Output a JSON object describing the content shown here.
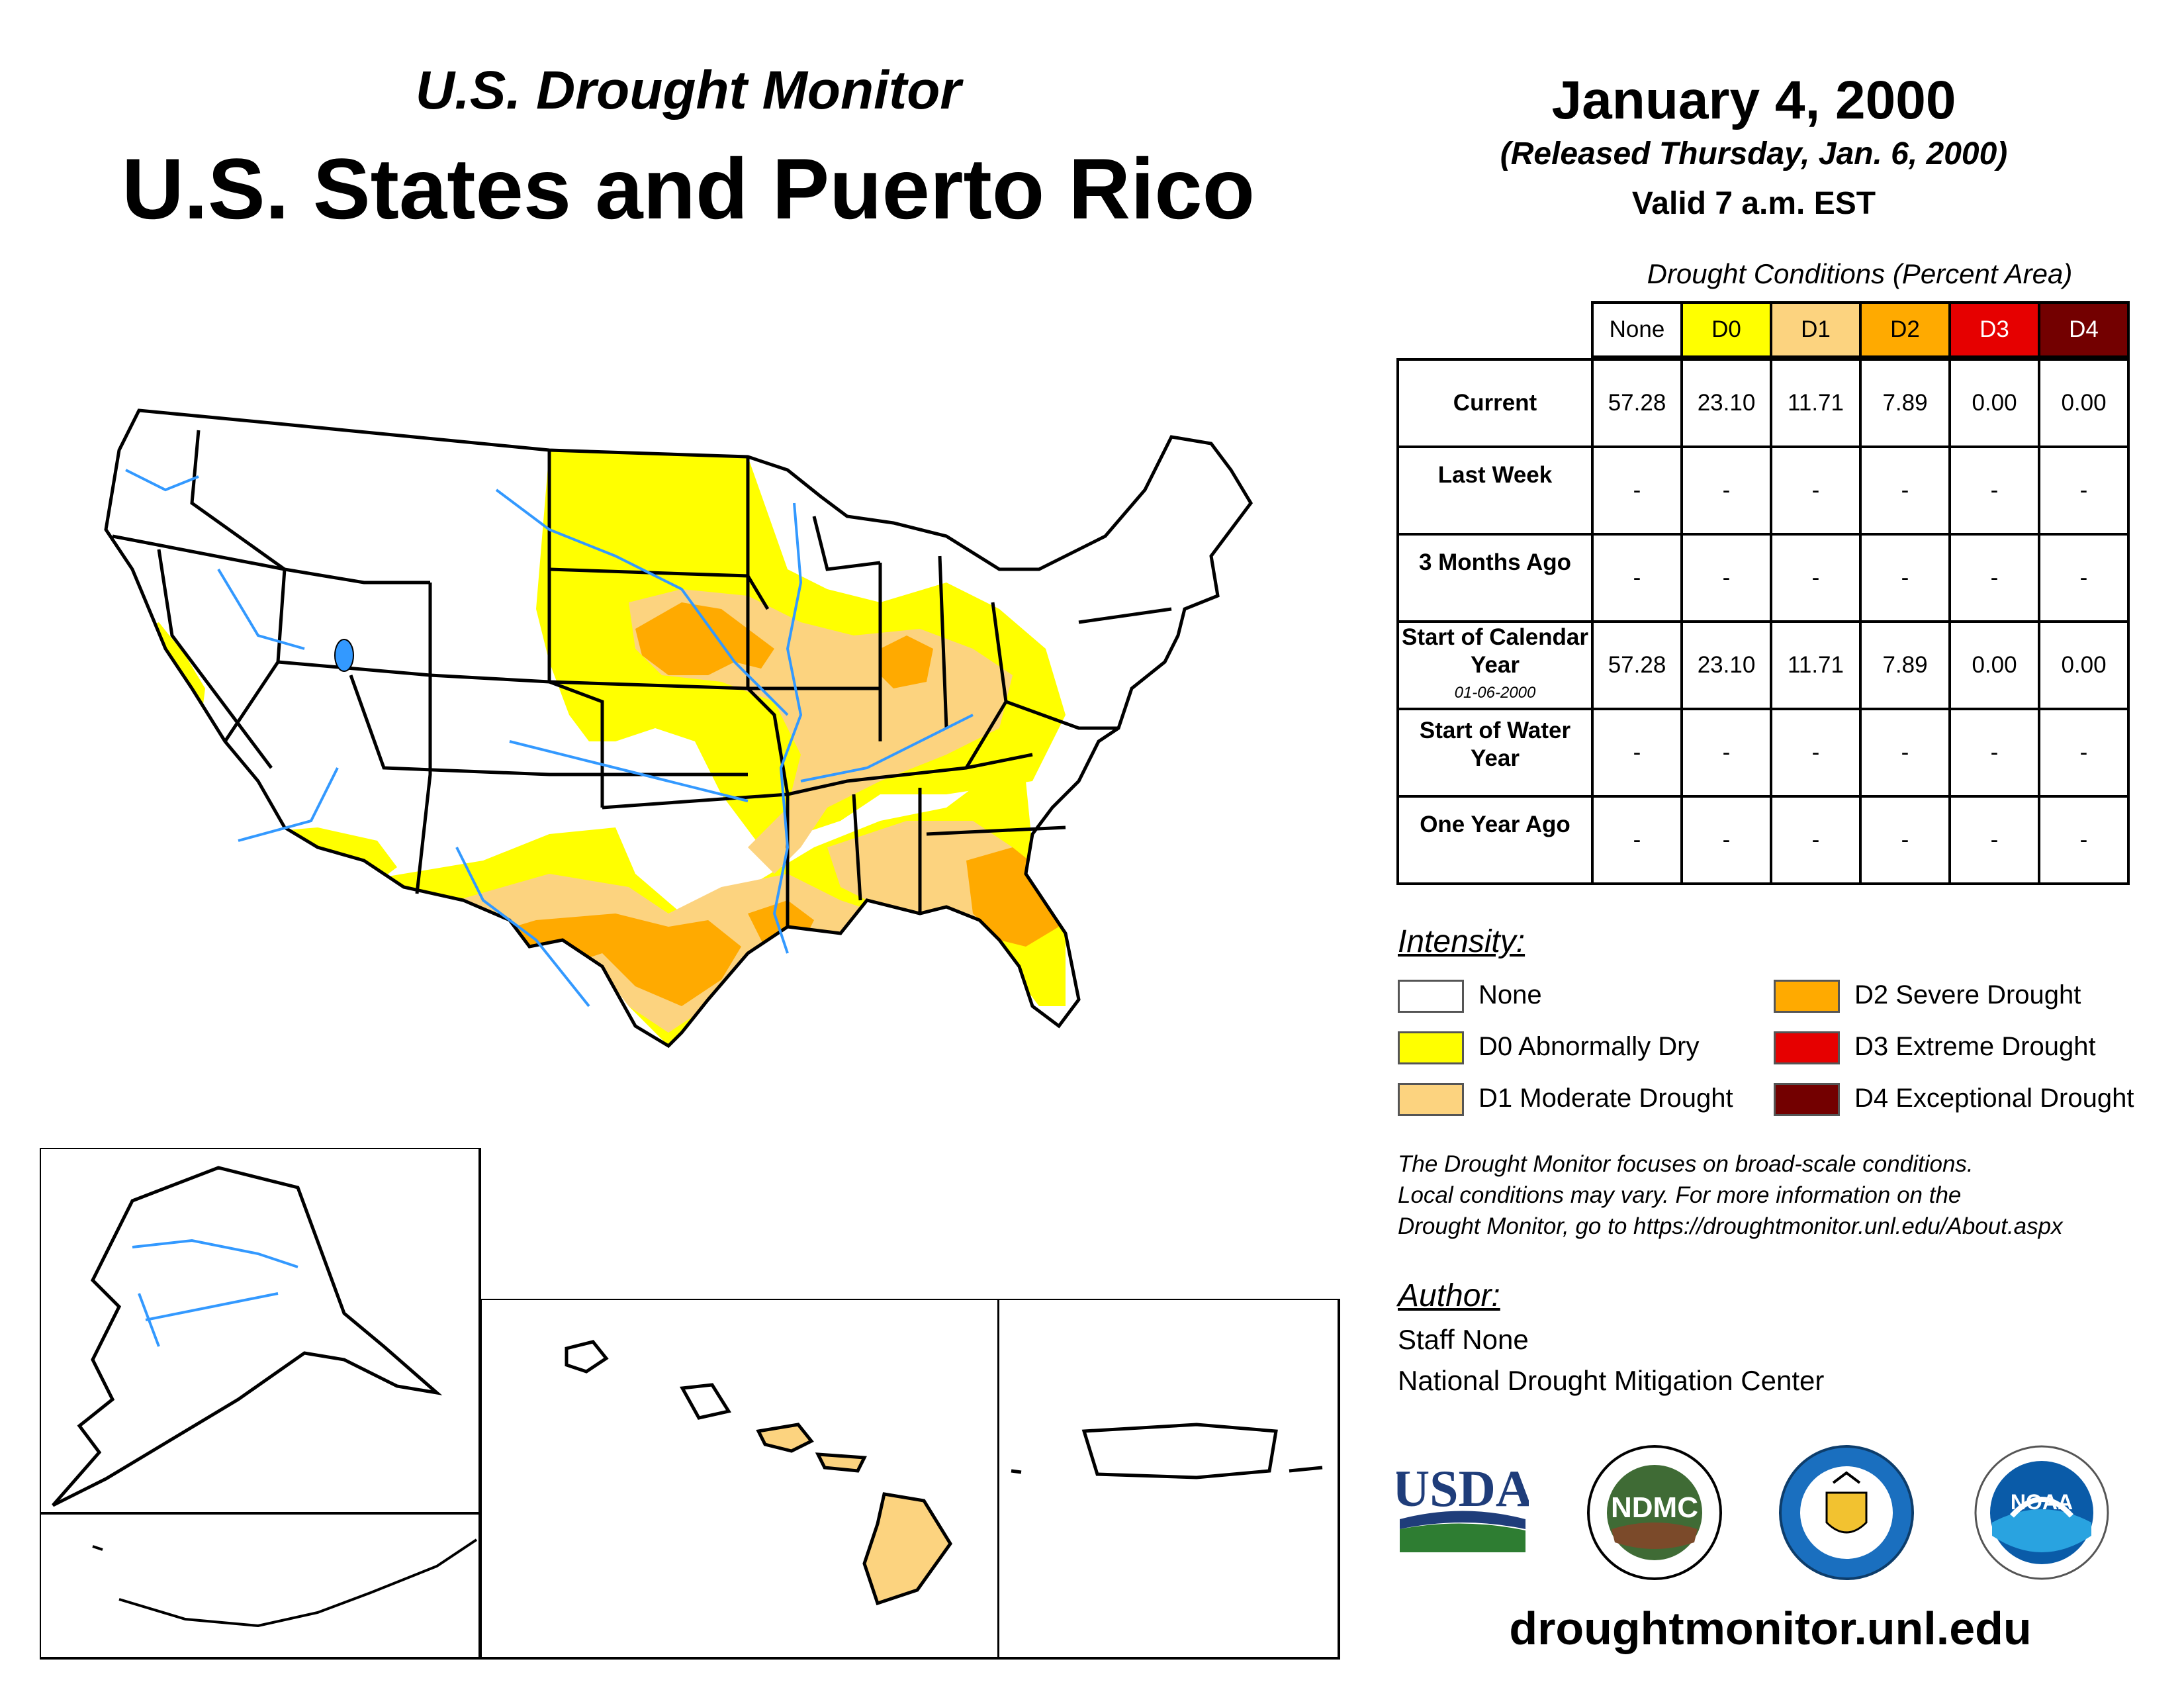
{
  "header": {
    "subtitle": "U.S. Drought Monitor",
    "title": "U.S. States and Puerto Rico",
    "date": "January 4, 2000",
    "released": "(Released Thursday, Jan. 6, 2000)",
    "valid": "Valid 7 a.m. EST"
  },
  "table": {
    "caption": "Drought Conditions (Percent Area)",
    "columns": [
      "None",
      "D0",
      "D1",
      "D2",
      "D3",
      "D4"
    ],
    "column_colors": [
      "#ffffff",
      "#ffff00",
      "#fcd37f",
      "#ffaa00",
      "#e60000",
      "#730000"
    ],
    "rows": [
      {
        "label": "Current",
        "sub": "",
        "values": [
          "57.28",
          "23.10",
          "11.71",
          "7.89",
          "0.00",
          "0.00"
        ]
      },
      {
        "label": "Last Week",
        "sub": "",
        "values": [
          "-",
          "-",
          "-",
          "-",
          "-",
          "-"
        ]
      },
      {
        "label": "3 Months Ago",
        "sub": "",
        "values": [
          "-",
          "-",
          "-",
          "-",
          "-",
          "-"
        ]
      },
      {
        "label": "Start of Calendar Year",
        "sub": "01-06-2000",
        "values": [
          "57.28",
          "23.10",
          "11.71",
          "7.89",
          "0.00",
          "0.00"
        ]
      },
      {
        "label": "Start of Water Year",
        "sub": "",
        "values": [
          "-",
          "-",
          "-",
          "-",
          "-",
          "-"
        ]
      },
      {
        "label": "One Year Ago",
        "sub": "",
        "values": [
          "-",
          "-",
          "-",
          "-",
          "-",
          "-"
        ]
      }
    ]
  },
  "legend": {
    "title": "Intensity:",
    "items": [
      {
        "label": "None",
        "color": "#ffffff"
      },
      {
        "label": "D0 Abnormally Dry",
        "color": "#ffff00"
      },
      {
        "label": "D1 Moderate Drought",
        "color": "#fcd37f"
      },
      {
        "label": "D2 Severe Drought",
        "color": "#ffaa00"
      },
      {
        "label": "D3 Extreme Drought",
        "color": "#e60000"
      },
      {
        "label": "D4 Exceptional Drought",
        "color": "#730000"
      }
    ]
  },
  "disclaimer": {
    "line1": "The Drought Monitor focuses on broad-scale conditions.",
    "line2": "Local conditions may vary. For more information on the",
    "line3": "Drought Monitor, go to https://droughtmonitor.unl.edu/About.aspx"
  },
  "author": {
    "title": "Author:",
    "name": "Staff None",
    "org": "National Drought Mitigation Center"
  },
  "logos": {
    "usda": "USDA",
    "ndmc": "NDMC",
    "noaa": "NOAA"
  },
  "website": "droughtmonitor.unl.edu",
  "colors": {
    "water": "#3399ff",
    "d0": "#ffff00",
    "d1": "#fcd37f",
    "d2": "#ffaa00"
  }
}
